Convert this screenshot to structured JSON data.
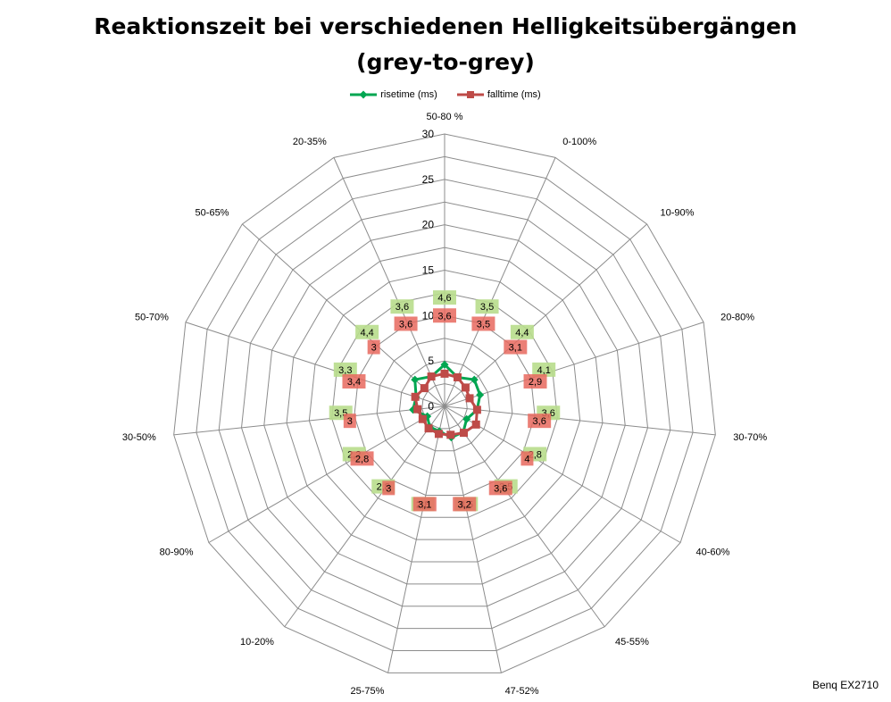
{
  "chart_data": {
    "type": "radar",
    "title_lines": [
      "Reaktionszeit bei verschiedenen Helligkeitsübergängen",
      "(grey-to-grey)"
    ],
    "categories": [
      "50-80 %",
      "0-100%",
      "10-90%",
      "20-80%",
      "30-70%",
      "40-60%",
      "45-55%",
      "47-52%",
      "25-75%",
      "10-20%",
      "80-90%",
      "30-50%",
      "50-70%",
      "50-65%",
      "20-35%"
    ],
    "rlim": [
      0,
      30
    ],
    "rticks": [
      0,
      5,
      10,
      15,
      20,
      25,
      30
    ],
    "grid": true,
    "legend_position": "top",
    "series": [
      {
        "name": "risetime (ms)",
        "color": "#00a651",
        "label_bg": "#b8dd8c",
        "values": [
          4.6,
          3.5,
          4.4,
          4.1,
          3.6,
          2.8,
          3.5,
          3.5,
          2.8,
          2.8,
          2.2,
          3.5,
          3.3,
          4.4,
          3.6
        ],
        "labels": [
          "4,6",
          "3,5",
          "4,4",
          "4,1",
          "3,6",
          "2,8",
          "3,5",
          "3,5",
          "2,8",
          "2,8",
          "2,2",
          "3,5",
          "3,3",
          "4,4",
          "3,6"
        ]
      },
      {
        "name": "falltime (ms)",
        "color": "#be4b48",
        "label_bg": "#e8695e",
        "values": [
          3.6,
          3.5,
          3.1,
          2.9,
          3.6,
          4.0,
          3.6,
          3.2,
          3.1,
          3.0,
          2.8,
          3.0,
          3.4,
          3.0,
          3.6
        ],
        "labels": [
          "3,6",
          "3,5",
          "3,1",
          "2,9",
          "3,6",
          "4",
          "3,6",
          "3,2",
          "3,1",
          "3",
          "2,8",
          "3",
          "3,4",
          "3",
          "3,6"
        ]
      }
    ],
    "footer": "Benq EX2710"
  }
}
